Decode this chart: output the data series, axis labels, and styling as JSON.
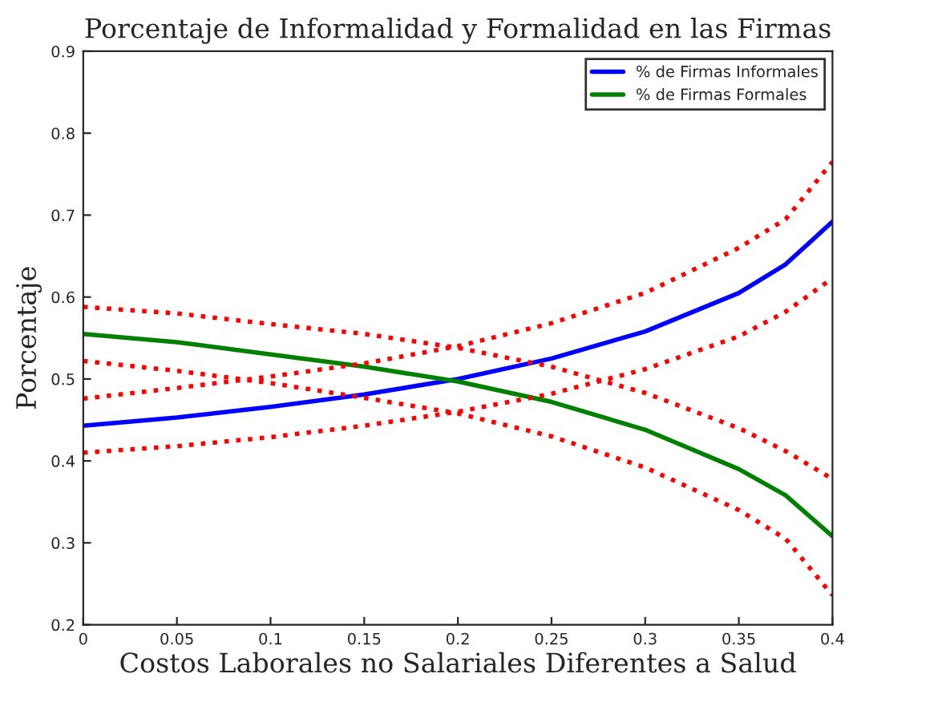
{
  "chart_data": {
    "type": "line",
    "title": "Porcentaje de Informalidad y Formalidad en las Firmas",
    "xlabel": "Costos Laborales no Salariales Diferentes a Salud",
    "ylabel": "Porcentaje",
    "x": [
      0,
      0.05,
      0.1,
      0.15,
      0.2,
      0.25,
      0.3,
      0.35,
      0.375,
      0.4
    ],
    "series": [
      {
        "name": "% de Firmas Informales",
        "color": "#0000ff",
        "line_style": "solid",
        "values": [
          0.443,
          0.453,
          0.466,
          0.481,
          0.5,
          0.525,
          0.558,
          0.605,
          0.64,
          0.692
        ]
      },
      {
        "name": "% de Firmas Formales",
        "color": "#008000",
        "line_style": "solid",
        "values": [
          0.555,
          0.545,
          0.53,
          0.515,
          0.497,
          0.472,
          0.438,
          0.39,
          0.358,
          0.308
        ]
      },
      {
        "color": "#ff0000",
        "line_style": "dotted",
        "values": [
          0.476,
          0.489,
          0.503,
          0.519,
          0.54,
          0.568,
          0.605,
          0.66,
          0.695,
          0.765
        ]
      },
      {
        "color": "#ff0000",
        "line_style": "dotted",
        "values": [
          0.41,
          0.418,
          0.429,
          0.443,
          0.46,
          0.482,
          0.512,
          0.552,
          0.582,
          0.623
        ]
      },
      {
        "color": "#ff0000",
        "line_style": "dotted",
        "values": [
          0.588,
          0.58,
          0.567,
          0.555,
          0.538,
          0.515,
          0.483,
          0.44,
          0.412,
          0.378
        ]
      },
      {
        "color": "#ff0000",
        "line_style": "dotted",
        "values": [
          0.522,
          0.51,
          0.495,
          0.477,
          0.458,
          0.43,
          0.392,
          0.34,
          0.305,
          0.236
        ]
      }
    ],
    "xlim": [
      0,
      0.4
    ],
    "xticks": [
      0,
      0.05,
      0.1,
      0.15,
      0.2,
      0.25,
      0.3,
      0.35,
      0.4
    ],
    "ylim": [
      0.2,
      0.9
    ],
    "yticks": [
      0.2,
      0.3,
      0.4,
      0.5,
      0.6,
      0.7,
      0.8,
      0.9
    ],
    "grid": false,
    "legend": "top right"
  }
}
